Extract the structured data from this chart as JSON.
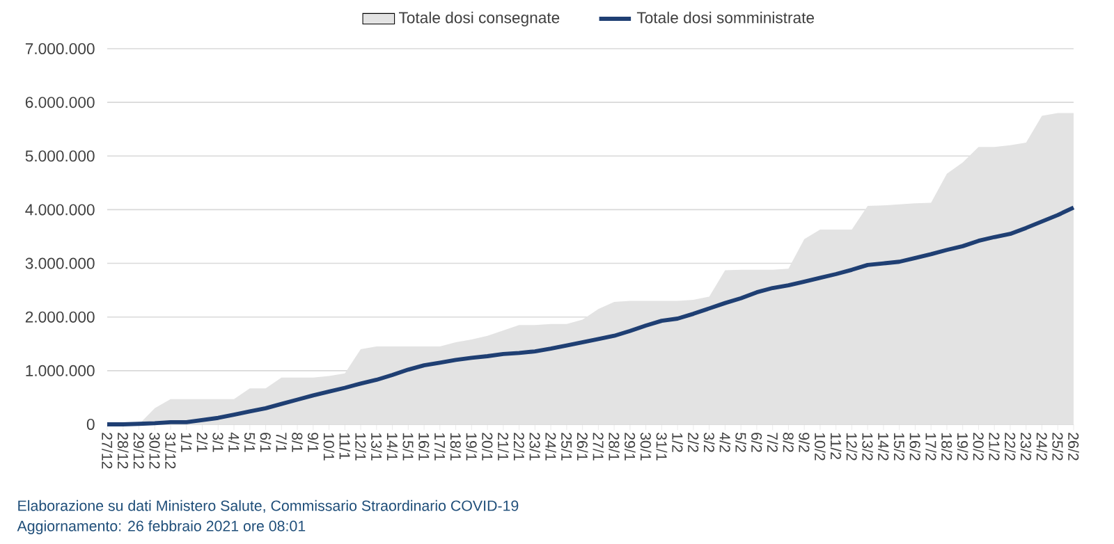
{
  "chart_data": {
    "type": "area",
    "categories": [
      "27/12",
      "28/12",
      "29/12",
      "30/12",
      "31/12",
      "1/1",
      "2/1",
      "3/1",
      "4/1",
      "5/1",
      "6/1",
      "7/1",
      "8/1",
      "9/1",
      "10/1",
      "11/1",
      "12/1",
      "13/1",
      "14/1",
      "15/1",
      "16/1",
      "17/1",
      "18/1",
      "19/1",
      "20/1",
      "21/1",
      "22/1",
      "23/1",
      "24/1",
      "25/1",
      "26/1",
      "27/1",
      "28/1",
      "29/1",
      "30/1",
      "31/1",
      "1/2",
      "2/2",
      "3/2",
      "4/2",
      "5/2",
      "6/2",
      "7/2",
      "8/2",
      "9/2",
      "10/2",
      "11/2",
      "12/2",
      "13/2",
      "14/2",
      "15/2",
      "16/2",
      "17/2",
      "18/2",
      "19/2",
      "20/2",
      "21/2",
      "22/2",
      "23/2",
      "24/2",
      "25/2",
      "26/2"
    ],
    "series": [
      {
        "name": "Totale dosi consegnate",
        "color": "#e3e3e3",
        "values": [
          0,
          0,
          0,
          300000,
          470000,
          470000,
          470000,
          470000,
          470000,
          670000,
          670000,
          870000,
          870000,
          870000,
          900000,
          950000,
          1400000,
          1450000,
          1450000,
          1450000,
          1450000,
          1450000,
          1530000,
          1580000,
          1650000,
          1750000,
          1850000,
          1850000,
          1870000,
          1870000,
          1950000,
          2150000,
          2280000,
          2300000,
          2300000,
          2300000,
          2300000,
          2320000,
          2380000,
          2870000,
          2880000,
          2880000,
          2880000,
          2900000,
          3450000,
          3630000,
          3630000,
          3630000,
          4070000,
          4080000,
          4100000,
          4120000,
          4130000,
          4670000,
          4880000,
          5170000,
          5170000,
          5200000,
          5250000,
          5750000,
          5800000,
          5800000
        ]
      },
      {
        "name": "Totale dosi somministrate",
        "type": "line",
        "color": "#1f3f73",
        "values": [
          0,
          0,
          10000,
          20000,
          40000,
          40000,
          80000,
          120000,
          180000,
          240000,
          300000,
          380000,
          460000,
          540000,
          610000,
          680000,
          760000,
          830000,
          920000,
          1020000,
          1100000,
          1150000,
          1200000,
          1240000,
          1270000,
          1310000,
          1330000,
          1360000,
          1410000,
          1470000,
          1530000,
          1590000,
          1650000,
          1740000,
          1840000,
          1930000,
          1970000,
          2060000,
          2160000,
          2260000,
          2350000,
          2460000,
          2540000,
          2590000,
          2660000,
          2730000,
          2800000,
          2880000,
          2970000,
          3000000,
          3030000,
          3100000,
          3170000,
          3250000,
          3320000,
          3420000,
          3490000,
          3550000,
          3660000,
          3780000,
          3900000,
          4040000
        ]
      }
    ],
    "ylim": [
      0,
      7000000
    ],
    "yticks": [
      0,
      {
        "value": 1000000,
        "label": "1.000.000"
      },
      {
        "value": 2000000,
        "label": "2.000.000"
      },
      {
        "value": 3000000,
        "label": "3.000.000"
      },
      {
        "value": 4000000,
        "label": "4.000.000"
      },
      {
        "value": 5000000,
        "label": "5.000.000"
      },
      {
        "value": 6000000,
        "label": "6.000.000"
      },
      {
        "value": 7000000,
        "label": "7.000.000"
      }
    ],
    "grid": "y",
    "legend": "top",
    "annotations": [
      "Elaborazione su dati Ministero Salute, Commissario Straordinario COVID-19",
      "Aggiornamento: 26 febbraio 2021 ore 08:01"
    ]
  }
}
